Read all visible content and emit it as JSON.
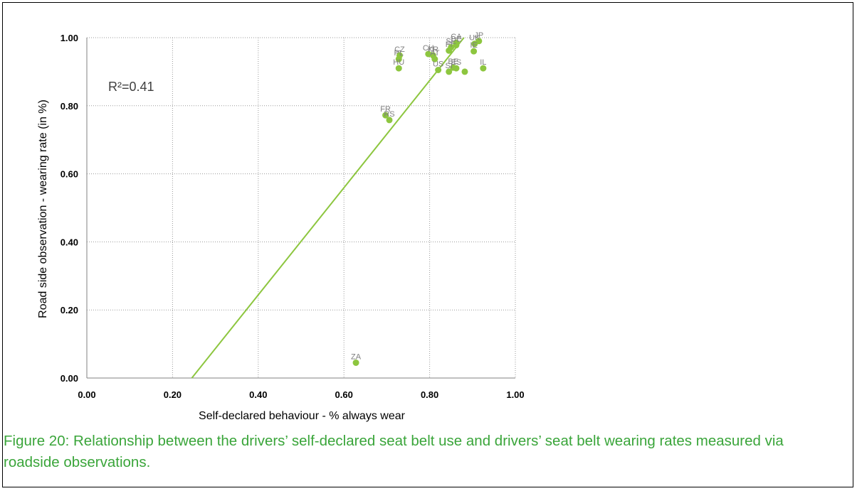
{
  "chart_data": {
    "type": "scatter",
    "xlabel": "Self-declared  behaviour - % always wear",
    "ylabel": "Road side observation - wearing  rate (in %)",
    "xlim": [
      0.0,
      1.0
    ],
    "ylim": [
      0.0,
      1.0
    ],
    "x_ticks": [
      "0.00",
      "0.20",
      "0.40",
      "0.60",
      "0.80",
      "1.00"
    ],
    "y_ticks": [
      "0.00",
      "0.20",
      "0.40",
      "0.60",
      "0.80",
      "1.00"
    ],
    "grid": true,
    "r_squared_label": "R²=0.41",
    "point_color": "#8dc63f",
    "trendline_color": "#8dc63f",
    "trendline": [
      {
        "x": 0.245,
        "y": 0.0
      },
      {
        "x": 0.88,
        "y": 1.0
      }
    ],
    "points": [
      {
        "label": "JP",
        "x": 0.915,
        "y": 0.99
      },
      {
        "label": "CA",
        "x": 0.862,
        "y": 0.985
      },
      {
        "label": "SE",
        "x": 0.85,
        "y": 0.972
      },
      {
        "label": "DE",
        "x": 0.862,
        "y": 0.978
      },
      {
        "label": "UK",
        "x": 0.905,
        "y": 0.982
      },
      {
        "label": "IE",
        "x": 0.903,
        "y": 0.96
      },
      {
        "label": "FI",
        "x": 0.845,
        "y": 0.962
      },
      {
        "label": "CH",
        "x": 0.797,
        "y": 0.952
      },
      {
        "label": "KR",
        "x": 0.808,
        "y": 0.948
      },
      {
        "label": "AT",
        "x": 0.812,
        "y": 0.937
      },
      {
        "label": "CZ",
        "x": 0.73,
        "y": 0.948
      },
      {
        "label": "PL",
        "x": 0.728,
        "y": 0.937
      },
      {
        "label": "HU",
        "x": 0.728,
        "y": 0.91
      },
      {
        "label": "IL",
        "x": 0.925,
        "y": 0.91
      },
      {
        "label": "BE",
        "x": 0.855,
        "y": 0.912
      },
      {
        "label": "ES",
        "x": 0.862,
        "y": 0.91
      },
      {
        "label": "SI",
        "x": 0.845,
        "y": 0.9
      },
      {
        "label": "US",
        "x": 0.82,
        "y": 0.905
      },
      {
        "label": "",
        "x": 0.882,
        "y": 0.9
      },
      {
        "label": "FR",
        "x": 0.697,
        "y": 0.772
      },
      {
        "label": "RS",
        "x": 0.706,
        "y": 0.758
      },
      {
        "label": "ZA",
        "x": 0.628,
        "y": 0.045
      }
    ]
  },
  "caption": "Figure 20: Relationship between the drivers’ self-declared seat belt use and drivers’ seat belt wearing rates measured via roadside observations."
}
